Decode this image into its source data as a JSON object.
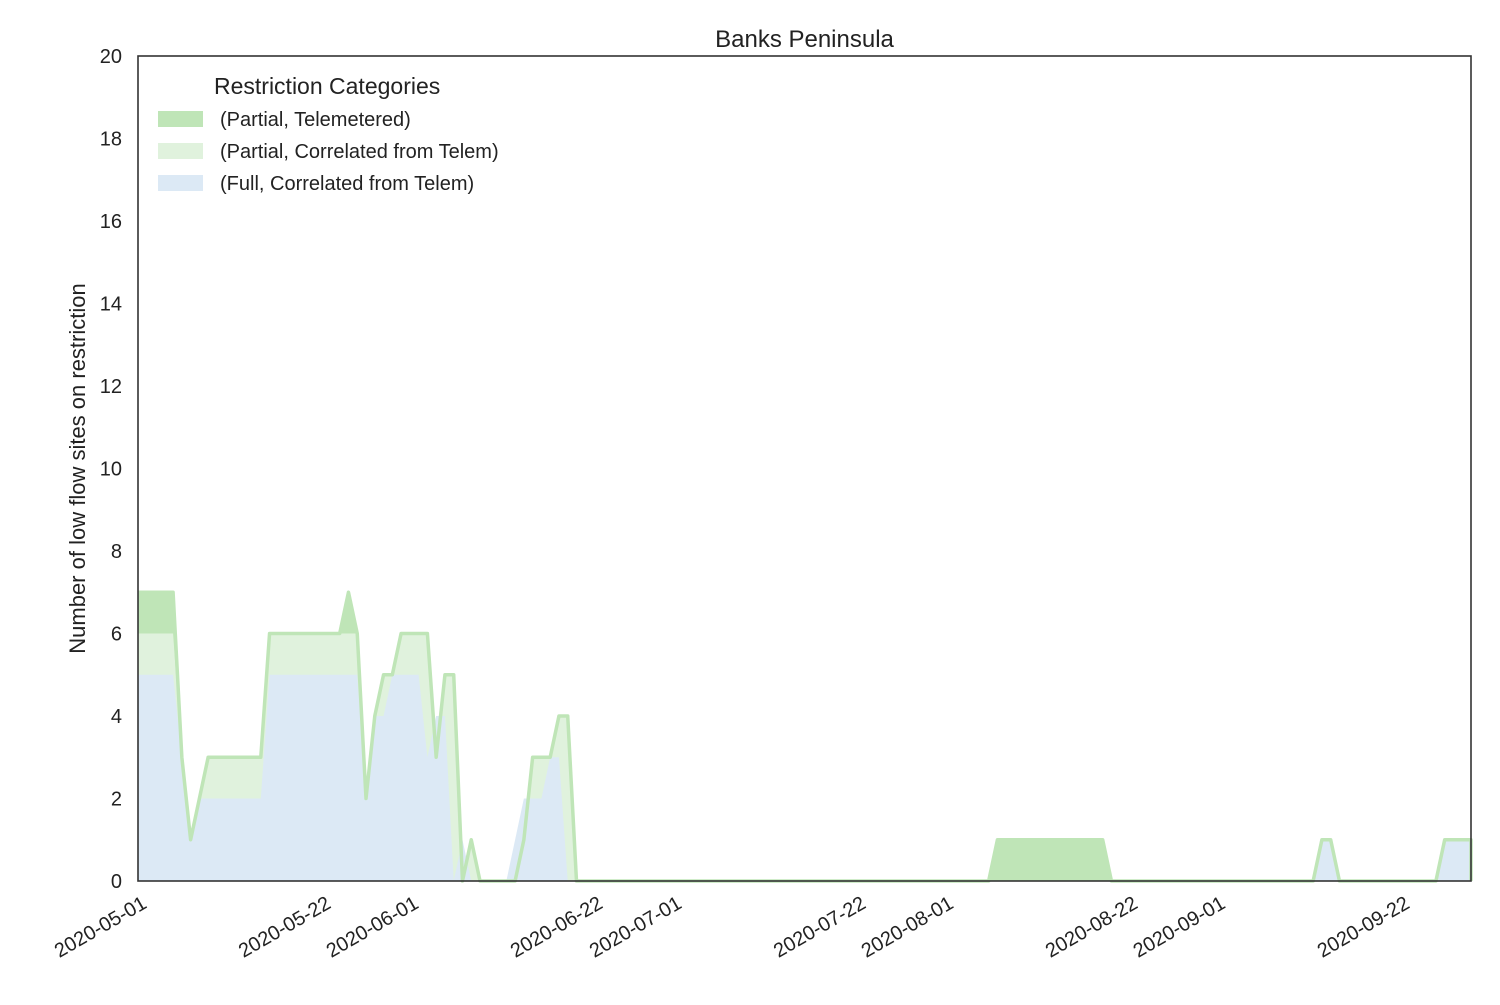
{
  "chart_data": {
    "type": "area",
    "stacked": true,
    "title": "Banks Peninsula",
    "xlabel": "",
    "ylabel": "Number of low flow sites on restriction",
    "ylim": [
      0,
      20
    ],
    "yticks": [
      0,
      2,
      4,
      6,
      8,
      10,
      12,
      14,
      16,
      18,
      20
    ],
    "xlim": [
      "2020-05-01",
      "2020-09-30"
    ],
    "xticks": [
      "2020-05-01",
      "2020-05-22",
      "2020-06-01",
      "2020-06-22",
      "2020-07-01",
      "2020-07-22",
      "2020-08-01",
      "2020-08-22",
      "2020-09-01",
      "2020-09-22"
    ],
    "grid": false,
    "legend": {
      "title": "Restriction Categories",
      "placement": "top-left"
    },
    "colors": {
      "partial_telemetered": "#bfe5b7",
      "partial_correlated": "#e0f2dd",
      "full_correlated": "#dce9f5",
      "outline": "#bfe5b7"
    },
    "series": [
      {
        "name": "(Full, Correlated from Telem)",
        "color": "#dce9f5",
        "points": [
          [
            "2020-05-01",
            5
          ],
          [
            "2020-05-05",
            5
          ],
          [
            "2020-05-06",
            3
          ],
          [
            "2020-05-07",
            1
          ],
          [
            "2020-05-08",
            2
          ],
          [
            "2020-05-09",
            2
          ],
          [
            "2020-05-15",
            2
          ],
          [
            "2020-05-16",
            5
          ],
          [
            "2020-05-24",
            5
          ],
          [
            "2020-05-25",
            5
          ],
          [
            "2020-05-26",
            5
          ],
          [
            "2020-05-27",
            2
          ],
          [
            "2020-05-28",
            4
          ],
          [
            "2020-05-29",
            4
          ],
          [
            "2020-05-30",
            5
          ],
          [
            "2020-06-02",
            5
          ],
          [
            "2020-06-03",
            3
          ],
          [
            "2020-06-04",
            4
          ],
          [
            "2020-06-05",
            4
          ],
          [
            "2020-06-06",
            0
          ],
          [
            "2020-06-07",
            1
          ],
          [
            "2020-06-08",
            0
          ],
          [
            "2020-06-12",
            0
          ],
          [
            "2020-06-13",
            1
          ],
          [
            "2020-06-14",
            2
          ],
          [
            "2020-06-16",
            2
          ],
          [
            "2020-06-17",
            3
          ],
          [
            "2020-06-18",
            3
          ],
          [
            "2020-06-19",
            0
          ],
          [
            "2020-09-12",
            0
          ],
          [
            "2020-09-13",
            1
          ],
          [
            "2020-09-14",
            1
          ],
          [
            "2020-09-15",
            0
          ],
          [
            "2020-09-26",
            0
          ],
          [
            "2020-09-27",
            1
          ],
          [
            "2020-09-30",
            1
          ],
          [
            "2020-09-30",
            0
          ]
        ]
      },
      {
        "name": "(Partial, Correlated from Telem)",
        "color": "#e0f2dd",
        "points": [
          [
            "2020-05-01",
            6
          ],
          [
            "2020-05-05",
            6
          ],
          [
            "2020-05-06",
            3
          ],
          [
            "2020-05-07",
            1
          ],
          [
            "2020-05-08",
            2
          ],
          [
            "2020-05-09",
            3
          ],
          [
            "2020-05-15",
            3
          ],
          [
            "2020-05-16",
            6
          ],
          [
            "2020-05-24",
            6
          ],
          [
            "2020-05-25",
            6
          ],
          [
            "2020-05-26",
            6
          ],
          [
            "2020-05-27",
            2
          ],
          [
            "2020-05-28",
            4
          ],
          [
            "2020-05-29",
            5
          ],
          [
            "2020-05-30",
            5
          ],
          [
            "2020-05-31",
            6
          ],
          [
            "2020-06-03",
            6
          ],
          [
            "2020-06-04",
            3
          ],
          [
            "2020-06-05",
            5
          ],
          [
            "2020-06-06",
            5
          ],
          [
            "2020-06-07",
            0
          ],
          [
            "2020-06-08",
            1
          ],
          [
            "2020-06-09",
            0
          ],
          [
            "2020-06-13",
            0
          ],
          [
            "2020-06-14",
            1
          ],
          [
            "2020-06-15",
            3
          ],
          [
            "2020-06-17",
            3
          ],
          [
            "2020-06-18",
            4
          ],
          [
            "2020-06-19",
            4
          ],
          [
            "2020-06-20",
            0
          ],
          [
            "2020-09-12",
            0
          ],
          [
            "2020-09-13",
            1
          ],
          [
            "2020-09-14",
            1
          ],
          [
            "2020-09-15",
            0
          ],
          [
            "2020-09-26",
            0
          ],
          [
            "2020-09-27",
            1
          ],
          [
            "2020-09-30",
            1
          ],
          [
            "2020-09-30",
            0
          ]
        ]
      },
      {
        "name": "(Partial, Telemetered)",
        "color": "#bfe5b7",
        "points": [
          [
            "2020-05-01",
            7
          ],
          [
            "2020-05-05",
            7
          ],
          [
            "2020-05-06",
            3
          ],
          [
            "2020-05-07",
            1
          ],
          [
            "2020-05-08",
            2
          ],
          [
            "2020-05-09",
            3
          ],
          [
            "2020-05-15",
            3
          ],
          [
            "2020-05-16",
            6
          ],
          [
            "2020-05-24",
            6
          ],
          [
            "2020-05-25",
            7
          ],
          [
            "2020-05-26",
            6
          ],
          [
            "2020-05-27",
            2
          ],
          [
            "2020-05-28",
            4
          ],
          [
            "2020-05-29",
            5
          ],
          [
            "2020-05-30",
            5
          ],
          [
            "2020-05-31",
            6
          ],
          [
            "2020-06-03",
            6
          ],
          [
            "2020-06-04",
            3
          ],
          [
            "2020-06-05",
            5
          ],
          [
            "2020-06-06",
            5
          ],
          [
            "2020-06-07",
            0
          ],
          [
            "2020-06-08",
            1
          ],
          [
            "2020-06-09",
            0
          ],
          [
            "2020-06-13",
            0
          ],
          [
            "2020-06-14",
            1
          ],
          [
            "2020-06-15",
            3
          ],
          [
            "2020-06-17",
            3
          ],
          [
            "2020-06-18",
            4
          ],
          [
            "2020-06-19",
            4
          ],
          [
            "2020-06-20",
            0
          ],
          [
            "2020-08-06",
            0
          ],
          [
            "2020-08-07",
            1
          ],
          [
            "2020-08-19",
            1
          ],
          [
            "2020-08-20",
            0
          ],
          [
            "2020-09-12",
            0
          ],
          [
            "2020-09-13",
            1
          ],
          [
            "2020-09-14",
            1
          ],
          [
            "2020-09-15",
            0
          ],
          [
            "2020-09-26",
            0
          ],
          [
            "2020-09-27",
            1
          ],
          [
            "2020-09-30",
            1
          ],
          [
            "2020-09-30",
            0
          ]
        ]
      }
    ]
  }
}
